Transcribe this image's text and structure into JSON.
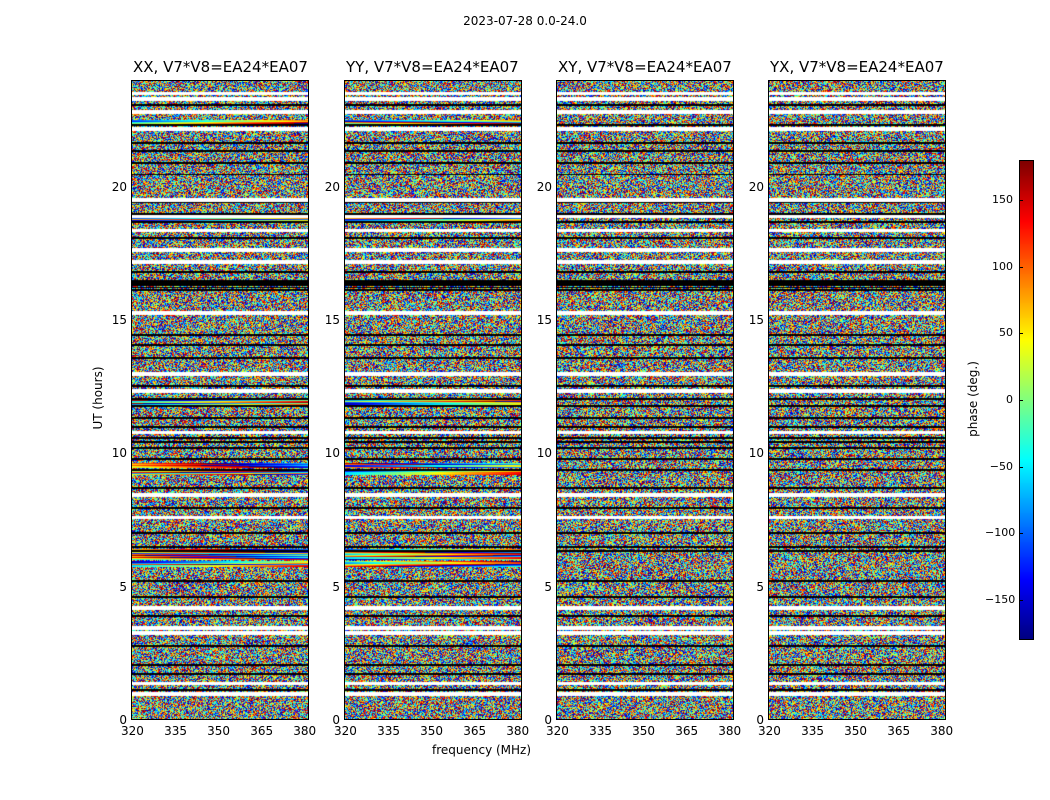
{
  "suptitle": "2023-07-28 0.0-24.0",
  "chart_data": {
    "type": "heatmap",
    "ylabel": "UT (hours)",
    "xlabel": "frequency (MHz)",
    "xlim": [
      320,
      382
    ],
    "ylim": [
      0,
      24
    ],
    "xticks": [
      "320",
      "335",
      "350",
      "365",
      "380"
    ],
    "xtick_values": [
      320,
      335,
      350,
      365,
      380
    ],
    "yticks": [
      "0",
      "5",
      "10",
      "15",
      "20"
    ],
    "ytick_values": [
      0,
      5,
      10,
      15,
      20
    ],
    "panels": [
      {
        "title": "XX, V7*V8=EA24*EA07",
        "pol": "XX"
      },
      {
        "title": "YY, V7*V8=EA24*EA07",
        "pol": "YY"
      },
      {
        "title": "XY, V7*V8=EA24*EA07",
        "pol": "XY"
      },
      {
        "title": "YX, V7*V8=EA24*EA07",
        "pol": "YX"
      }
    ],
    "colorbar": {
      "label": "phase (deg.)",
      "range": [
        -180,
        180
      ],
      "colormap": "jet",
      "ticks": [
        "150",
        "100",
        "50",
        "0",
        "−50",
        "−100",
        "−150"
      ],
      "tick_values": [
        150,
        100,
        50,
        0,
        -50,
        -100,
        -150
      ]
    },
    "white_gap_hours": [
      0.95,
      1.35,
      3.25,
      3.45,
      4.2,
      7.6,
      8.45,
      10.8,
      12.35,
      13.0,
      15.3,
      17.2,
      17.65,
      18.4,
      18.95,
      19.55,
      22.2,
      22.85,
      23.35,
      23.55
    ],
    "black_line_hours": [
      1.1,
      1.7,
      2.05,
      2.75,
      3.9,
      4.6,
      5.2,
      6.35,
      6.5,
      7.0,
      7.95,
      8.7,
      9.4,
      9.8,
      10.2,
      10.45,
      10.6,
      11.0,
      11.35,
      11.8,
      12.05,
      12.55,
      13.6,
      14.1,
      14.45,
      16.15,
      16.25,
      16.85,
      18.1,
      18.7,
      19.0,
      19.45,
      20.5,
      20.95,
      21.4,
      21.7,
      22.35,
      23.1
    ],
    "thick_black_band_hours": [
      16.3,
      16.55
    ],
    "smooth_band_hours": [
      6.1,
      6.3,
      5.85,
      9.3,
      9.55,
      11.85,
      12.0,
      18.85,
      22.45
    ]
  }
}
